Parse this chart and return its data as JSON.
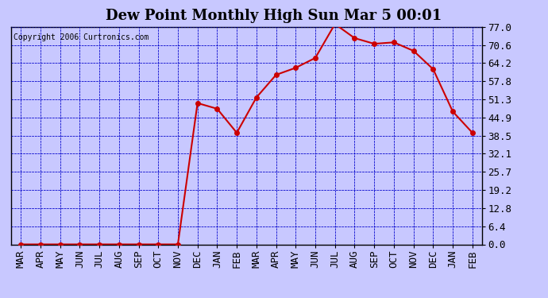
{
  "title": "Dew Point Monthly High Sun Mar 5 00:01",
  "copyright": "Copyright 2006 Curtronics.com",
  "months": [
    "MAR",
    "APR",
    "MAY",
    "JUN",
    "JUL",
    "AUG",
    "SEP",
    "OCT",
    "NOV",
    "DEC",
    "JAN",
    "FEB",
    "MAR",
    "APR",
    "MAY",
    "JUN",
    "JUL",
    "AUG",
    "SEP",
    "OCT",
    "NOV",
    "DEC",
    "JAN",
    "FEB"
  ],
  "values": [
    0.0,
    0.0,
    0.0,
    0.0,
    0.0,
    0.0,
    0.0,
    0.0,
    0.0,
    50.0,
    48.0,
    39.5,
    52.0,
    60.0,
    62.5,
    66.0,
    78.0,
    73.0,
    71.0,
    71.5,
    68.5,
    62.0,
    47.0,
    39.5
  ],
  "yticks": [
    0.0,
    6.4,
    12.8,
    19.2,
    25.7,
    32.1,
    38.5,
    44.9,
    51.3,
    57.8,
    64.2,
    70.6,
    77.0
  ],
  "line_color": "#cc0000",
  "marker_color": "#cc0000",
  "bg_color": "#c8c8ff",
  "plot_bg_color": "#c8c8ff",
  "grid_color": "#0000cc",
  "title_fontsize": 13,
  "copyright_fontsize": 7,
  "tick_fontsize": 9,
  "ymin": 0.0,
  "ymax": 77.0
}
